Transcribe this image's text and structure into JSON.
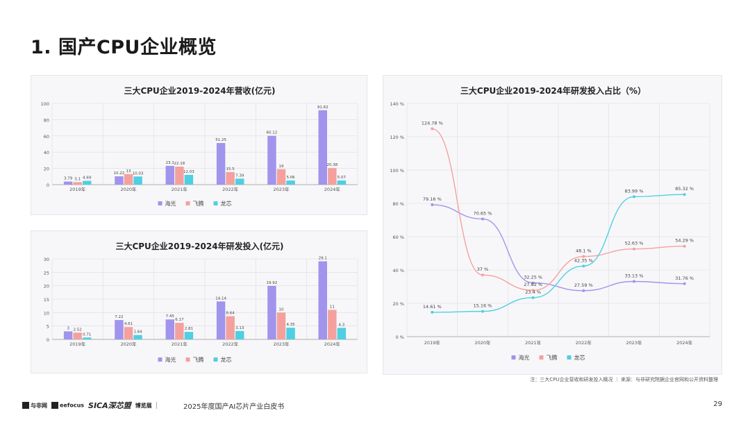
{
  "page": {
    "title": "1. 国产CPU企业概览",
    "note": "注：三大CPU企业营收和研发投入概况 ｜ 来源：与非研究院据企业官网和公开资料整理",
    "footer": {
      "logos": [
        "与非网",
        "eefocus",
        "SICA深芯盟",
        "博览展"
      ],
      "book_title": "2025年度国产AI芯片产业白皮书",
      "page_number": "29"
    }
  },
  "colors": {
    "haiguang": "#a094ec",
    "feiteng": "#f4a19e",
    "longxin": "#4fcfe2",
    "panel_bg": "#f7f7f9",
    "grid": "#dcdce2"
  },
  "chart_data": [
    {
      "type": "bar",
      "title": "三大CPU企业2019-2024年营收(亿元)",
      "categories": [
        "2019年",
        "2020年",
        "2021年",
        "2022年",
        "2023年",
        "2024年"
      ],
      "ylim": [
        0,
        100
      ],
      "yticks": [
        0,
        20,
        40,
        60,
        80,
        100
      ],
      "legend_position": "bottom",
      "series": [
        {
          "name": "海光",
          "values": [
            3.79,
            10.22,
            23.1,
            51.25,
            60.12,
            91.62
          ],
          "labels": [
            "3.79",
            "10.22",
            "23.1",
            "51.25",
            "60.12",
            "91.62"
          ]
        },
        {
          "name": "飞腾",
          "values": [
            3.1,
            13,
            22.18,
            15.5,
            19,
            20.38
          ],
          "labels": [
            "3.1",
            "13",
            "22.18",
            "15.5",
            "19",
            "20.38"
          ]
        },
        {
          "name": "龙芯",
          "values": [
            4.69,
            10.03,
            12.03,
            7.39,
            5.06,
            5.07
          ],
          "labels": [
            "4.69",
            "10.03",
            "12.03",
            "7.39",
            "5.06",
            "5.07"
          ]
        }
      ]
    },
    {
      "type": "bar",
      "title": "三大CPU企业2019-2024年研发投入(亿元)",
      "categories": [
        "2019年",
        "2020年",
        "2021年",
        "2022年",
        "2023年",
        "2024年"
      ],
      "ylim": [
        0,
        30
      ],
      "yticks": [
        0,
        5,
        10,
        15,
        20,
        25,
        30
      ],
      "legend_position": "bottom",
      "series": [
        {
          "name": "海光",
          "values": [
            3,
            7.22,
            7.45,
            14.14,
            19.92,
            29.1
          ],
          "labels": [
            "3",
            "7.22",
            "7.45",
            "14.14",
            "19.92",
            "29.1"
          ]
        },
        {
          "name": "飞腾",
          "values": [
            2.52,
            4.61,
            6.17,
            8.64,
            10,
            11
          ],
          "labels": [
            "2.52",
            "4.61",
            "6.17",
            "8.64",
            "10",
            "11"
          ]
        },
        {
          "name": "龙芯",
          "values": [
            0.71,
            1.64,
            2.81,
            3.13,
            4.35,
            4.3
          ],
          "labels": [
            "0.71",
            "1.64",
            "2.81",
            "3.13",
            "4.35",
            "4.3"
          ]
        }
      ]
    },
    {
      "type": "line",
      "title": "三大CPU企业2019-2024年研发投入占比（%）",
      "categories": [
        "2019年",
        "2020年",
        "2021年",
        "2022年",
        "2023年",
        "2024年"
      ],
      "ylim": [
        0,
        140
      ],
      "yticks": [
        0,
        20,
        40,
        60,
        80,
        100,
        120,
        140
      ],
      "ytick_labels": [
        "0 %",
        "20 %",
        "40 %",
        "60 %",
        "80 %",
        "100 %",
        "120 %",
        "140 %"
      ],
      "legend_position": "bottom",
      "series": [
        {
          "name": "海光",
          "values": [
            79.16,
            70.65,
            32.25,
            27.59,
            33.13,
            31.76
          ],
          "labels": [
            "79.16 %",
            "70.65 %",
            "32.25 %",
            "27.59 %",
            "33.13 %",
            "31.76 %"
          ]
        },
        {
          "name": "飞腾",
          "values": [
            124.78,
            37,
            27.82,
            48.1,
            52.63,
            54.29
          ],
          "labels": [
            "124.78 %",
            "37 %",
            "27.82 %",
            "48.1 %",
            "52.63 %",
            "54.29 %"
          ]
        },
        {
          "name": "龙芯",
          "values": [
            14.61,
            15.16,
            23.4,
            42.35,
            83.99,
            85.32
          ],
          "labels": [
            "14.61 %",
            "15.16 %",
            "23.4 %",
            "42.35 %",
            "83.99 %",
            "85.32 %"
          ]
        }
      ]
    }
  ]
}
